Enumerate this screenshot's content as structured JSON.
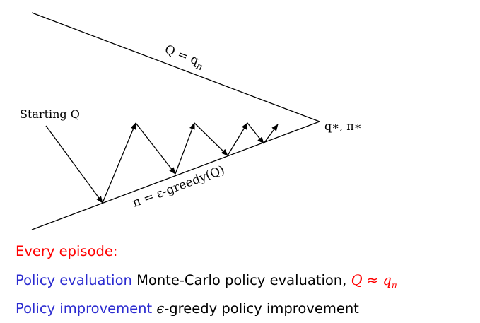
{
  "diagram": {
    "upper_line_label": "Q = q",
    "upper_line_label_sub": "π",
    "lower_line_label": "π = ε-greedy(Q)",
    "start_label": "Starting Q",
    "apex_label": "q∗, π∗"
  },
  "text": {
    "every_episode": "Every episode:",
    "policy_evaluation_label": "Policy evaluation",
    "policy_evaluation_desc": "Monte-Carlo policy evaluation,",
    "q_symbol": "Q",
    "approx_symbol": "≈",
    "q_pi": "q",
    "q_pi_sub": "π",
    "policy_improvement_label": "Policy improvement",
    "epsilon": "ϵ",
    "policy_improvement_desc": "-greedy policy improvement"
  },
  "colors": {
    "heading": "#ff0000",
    "term": "#2b2bd0",
    "body": "#000000",
    "math_highlight": "#ff0000"
  }
}
